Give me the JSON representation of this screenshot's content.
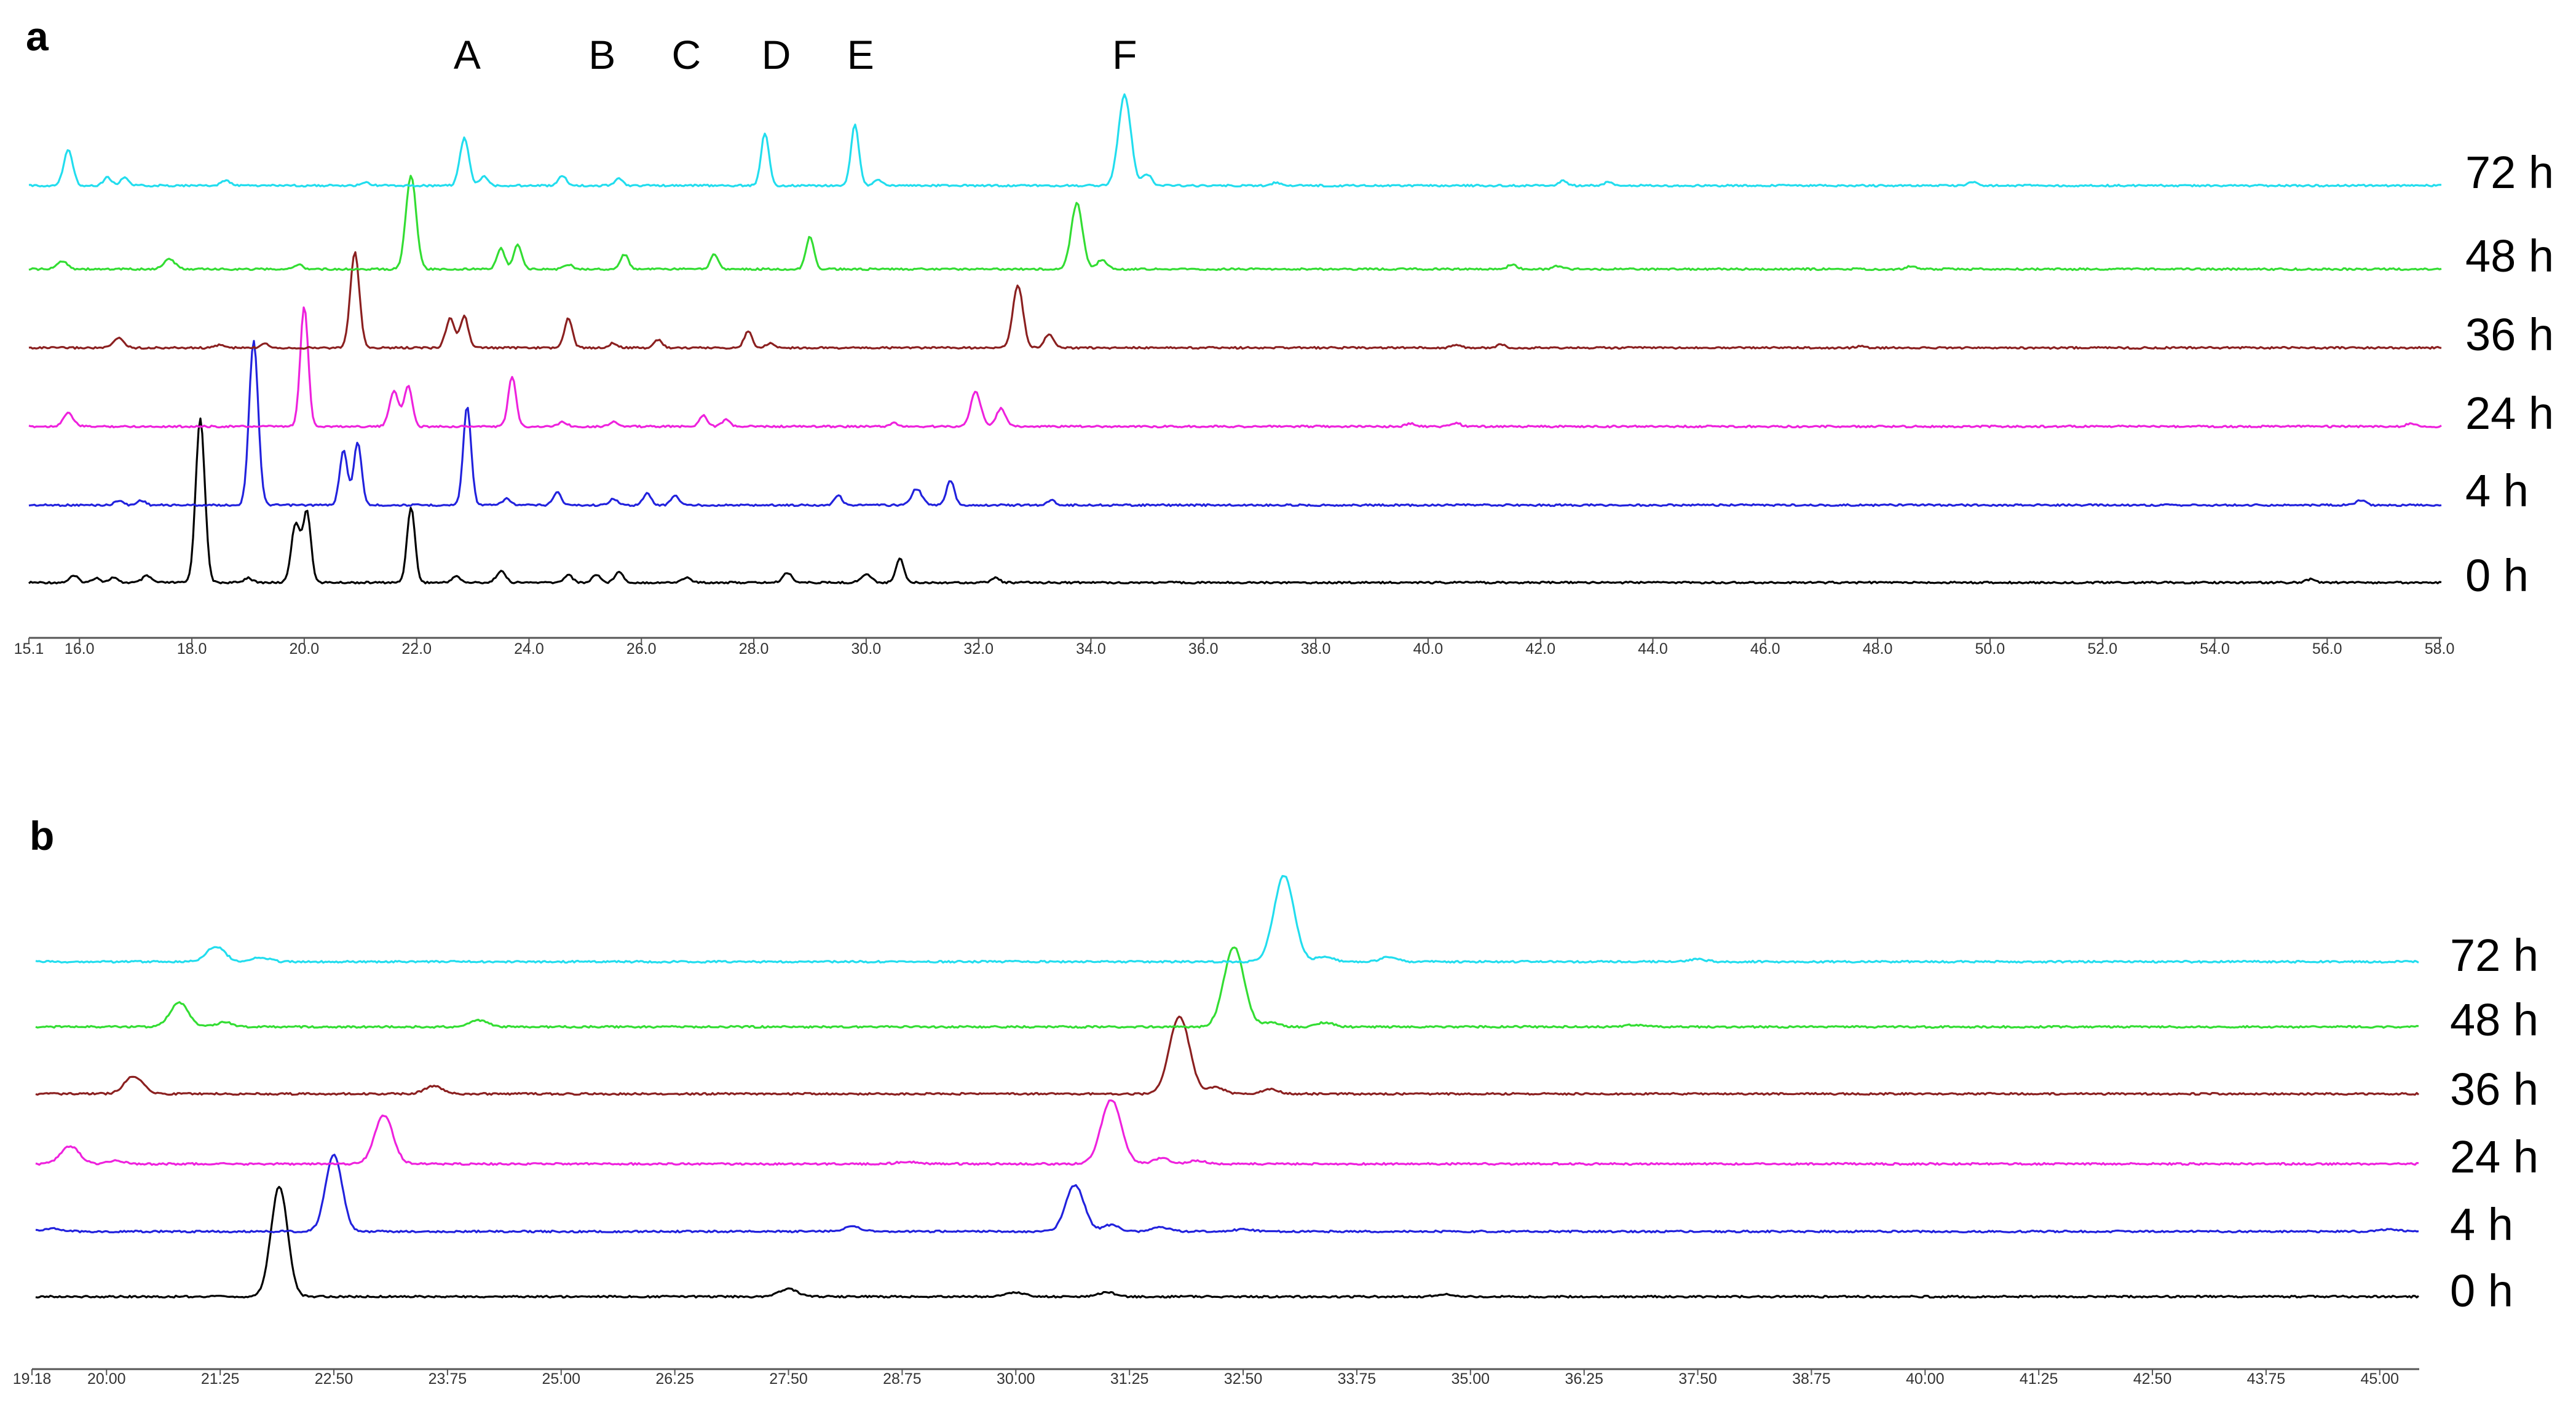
{
  "chart_data": [
    {
      "panel": "a",
      "type": "line",
      "x_ticks": [
        "15.1",
        "16.0",
        "18.0",
        "20.0",
        "22.0",
        "24.0",
        "26.0",
        "28.0",
        "30.0",
        "32.0",
        "34.0",
        "36.0",
        "38.0",
        "40.0",
        "42.0",
        "44.0",
        "46.0",
        "48.0",
        "50.0",
        "52.0",
        "54.0",
        "56.0",
        "58.0"
      ],
      "xlim": [
        15.1,
        58.5
      ],
      "peak_labels": [
        {
          "text": "A",
          "x": 22.9
        },
        {
          "text": "B",
          "x": 25.3
        },
        {
          "text": "C",
          "x": 26.8
        },
        {
          "text": "D",
          "x": 28.4
        },
        {
          "text": "E",
          "x": 29.9
        },
        {
          "text": "F",
          "x": 34.6
        }
      ],
      "series": [
        {
          "name": "0 h",
          "color": "#000000",
          "peaks": [
            [
              15.9,
              0.04,
              0.08
            ],
            [
              16.3,
              0.03,
              0.07
            ],
            [
              16.6,
              0.03,
              0.07
            ],
            [
              17.2,
              0.04,
              0.08
            ],
            [
              18.15,
              1.0,
              0.08
            ],
            [
              19.0,
              0.03,
              0.07
            ],
            [
              19.85,
              0.36,
              0.08
            ],
            [
              20.05,
              0.42,
              0.07
            ],
            [
              21.9,
              0.46,
              0.07
            ],
            [
              22.7,
              0.04,
              0.07
            ],
            [
              23.5,
              0.07,
              0.08
            ],
            [
              24.7,
              0.05,
              0.07
            ],
            [
              25.2,
              0.05,
              0.07
            ],
            [
              25.6,
              0.07,
              0.07
            ],
            [
              26.8,
              0.03,
              0.08
            ],
            [
              28.6,
              0.06,
              0.08
            ],
            [
              30.0,
              0.05,
              0.09
            ],
            [
              30.6,
              0.15,
              0.07
            ],
            [
              32.3,
              0.03,
              0.07
            ],
            [
              55.7,
              0.02,
              0.08
            ]
          ]
        },
        {
          "name": "4 h",
          "color": "#2222dd",
          "peaks": [
            [
              16.7,
              0.03,
              0.07
            ],
            [
              17.1,
              0.03,
              0.07
            ],
            [
              19.1,
              1.0,
              0.08
            ],
            [
              20.7,
              0.33,
              0.07
            ],
            [
              20.95,
              0.38,
              0.07
            ],
            [
              22.9,
              0.6,
              0.07
            ],
            [
              23.6,
              0.04,
              0.07
            ],
            [
              24.5,
              0.08,
              0.07
            ],
            [
              25.5,
              0.04,
              0.07
            ],
            [
              26.1,
              0.07,
              0.07
            ],
            [
              26.6,
              0.06,
              0.07
            ],
            [
              29.5,
              0.06,
              0.07
            ],
            [
              30.9,
              0.1,
              0.09
            ],
            [
              31.5,
              0.15,
              0.07
            ],
            [
              33.3,
              0.03,
              0.07
            ],
            [
              56.6,
              0.03,
              0.08
            ]
          ]
        },
        {
          "name": "24 h",
          "color": "#ee22dd",
          "peaks": [
            [
              15.8,
              0.08,
              0.09
            ],
            [
              20.0,
              0.73,
              0.07
            ],
            [
              21.6,
              0.22,
              0.08
            ],
            [
              21.85,
              0.25,
              0.07
            ],
            [
              23.7,
              0.3,
              0.07
            ],
            [
              24.6,
              0.03,
              0.07
            ],
            [
              25.5,
              0.03,
              0.07
            ],
            [
              27.1,
              0.07,
              0.07
            ],
            [
              27.5,
              0.04,
              0.07
            ],
            [
              30.5,
              0.02,
              0.07
            ],
            [
              31.95,
              0.21,
              0.09
            ],
            [
              32.4,
              0.11,
              0.08
            ],
            [
              39.7,
              0.02,
              0.08
            ],
            [
              40.5,
              0.02,
              0.08
            ],
            [
              57.5,
              0.02,
              0.08
            ]
          ]
        },
        {
          "name": "36 h",
          "color": "#8b2020",
          "peaks": [
            [
              16.7,
              0.06,
              0.09
            ],
            [
              18.5,
              0.02,
              0.07
            ],
            [
              19.3,
              0.03,
              0.07
            ],
            [
              20.9,
              0.58,
              0.08
            ],
            [
              22.6,
              0.18,
              0.08
            ],
            [
              22.85,
              0.19,
              0.07
            ],
            [
              24.7,
              0.18,
              0.07
            ],
            [
              25.5,
              0.03,
              0.07
            ],
            [
              26.3,
              0.05,
              0.07
            ],
            [
              27.9,
              0.1,
              0.07
            ],
            [
              28.3,
              0.03,
              0.07
            ],
            [
              32.7,
              0.38,
              0.09
            ],
            [
              33.25,
              0.08,
              0.08
            ],
            [
              40.5,
              0.02,
              0.08
            ],
            [
              41.3,
              0.02,
              0.08
            ],
            [
              47.7,
              0.01,
              0.08
            ]
          ]
        },
        {
          "name": "48 h",
          "color": "#33dd33",
          "peaks": [
            [
              15.7,
              0.05,
              0.09
            ],
            [
              17.6,
              0.06,
              0.1
            ],
            [
              19.9,
              0.03,
              0.07
            ],
            [
              21.9,
              0.57,
              0.09
            ],
            [
              23.5,
              0.13,
              0.07
            ],
            [
              23.8,
              0.15,
              0.07
            ],
            [
              24.7,
              0.03,
              0.07
            ],
            [
              25.7,
              0.09,
              0.07
            ],
            [
              27.3,
              0.09,
              0.07
            ],
            [
              29.0,
              0.2,
              0.07
            ],
            [
              33.75,
              0.4,
              0.1
            ],
            [
              34.2,
              0.06,
              0.08
            ],
            [
              41.5,
              0.03,
              0.08
            ],
            [
              42.3,
              0.02,
              0.08
            ],
            [
              48.6,
              0.02,
              0.08
            ]
          ]
        },
        {
          "name": "72 h",
          "color": "#22ddee",
          "peaks": [
            [
              15.8,
              0.22,
              0.08
            ],
            [
              16.5,
              0.05,
              0.07
            ],
            [
              16.8,
              0.05,
              0.07
            ],
            [
              18.6,
              0.03,
              0.08
            ],
            [
              21.1,
              0.02,
              0.07
            ],
            [
              22.85,
              0.29,
              0.08
            ],
            [
              23.2,
              0.06,
              0.07
            ],
            [
              24.6,
              0.06,
              0.07
            ],
            [
              25.6,
              0.04,
              0.07
            ],
            [
              28.2,
              0.32,
              0.07
            ],
            [
              29.8,
              0.37,
              0.07
            ],
            [
              30.2,
              0.04,
              0.07
            ],
            [
              34.6,
              0.55,
              0.11
            ],
            [
              35.0,
              0.07,
              0.08
            ],
            [
              37.3,
              0.02,
              0.07
            ],
            [
              42.4,
              0.03,
              0.07
            ],
            [
              43.2,
              0.02,
              0.07
            ],
            [
              49.7,
              0.02,
              0.08
            ]
          ]
        }
      ]
    },
    {
      "panel": "b",
      "type": "line",
      "x_ticks": [
        "19.18",
        "20.00",
        "21.25",
        "22.50",
        "23.75",
        "25.00",
        "26.25",
        "27.50",
        "28.75",
        "30.00",
        "31.25",
        "32.50",
        "33.75",
        "35.00",
        "36.25",
        "37.50",
        "38.75",
        "40.00",
        "41.25",
        "42.50",
        "43.75",
        "45.00"
      ],
      "xlim": [
        19.18,
        45.4
      ],
      "series": [
        {
          "name": "0 h",
          "color": "#000000",
          "peaks": [
            [
              21.9,
              1.0,
              0.09
            ],
            [
              27.5,
              0.07,
              0.1
            ],
            [
              30.0,
              0.04,
              0.1
            ],
            [
              31.0,
              0.04,
              0.09
            ],
            [
              34.7,
              0.02,
              0.1
            ]
          ]
        },
        {
          "name": "4 h",
          "color": "#2222dd",
          "peaks": [
            [
              19.4,
              0.03,
              0.1
            ],
            [
              22.5,
              0.7,
              0.09
            ],
            [
              28.2,
              0.05,
              0.09
            ],
            [
              30.65,
              0.42,
              0.1
            ],
            [
              31.05,
              0.06,
              0.09
            ],
            [
              31.6,
              0.04,
              0.09
            ],
            [
              32.5,
              0.02,
              0.1
            ],
            [
              45.1,
              0.02,
              0.1
            ]
          ]
        },
        {
          "name": "24 h",
          "color": "#ee22dd",
          "peaks": [
            [
              19.6,
              0.16,
              0.1
            ],
            [
              20.1,
              0.03,
              0.09
            ],
            [
              23.05,
              0.44,
              0.1
            ],
            [
              28.8,
              0.02,
              0.1
            ],
            [
              31.05,
              0.58,
              0.11
            ],
            [
              31.6,
              0.05,
              0.09
            ],
            [
              32.0,
              0.03,
              0.09
            ]
          ]
        },
        {
          "name": "36 h",
          "color": "#8b2020",
          "peaks": [
            [
              20.3,
              0.16,
              0.1
            ],
            [
              23.6,
              0.07,
              0.1
            ],
            [
              31.8,
              0.7,
              0.11
            ],
            [
              32.2,
              0.06,
              0.09
            ],
            [
              32.8,
              0.04,
              0.09
            ]
          ]
        },
        {
          "name": "48 h",
          "color": "#33dd33",
          "peaks": [
            [
              20.8,
              0.22,
              0.1
            ],
            [
              21.3,
              0.04,
              0.09
            ],
            [
              24.1,
              0.06,
              0.1
            ],
            [
              32.4,
              0.72,
              0.11
            ],
            [
              32.8,
              0.04,
              0.09
            ],
            [
              33.4,
              0.04,
              0.09
            ],
            [
              36.8,
              0.02,
              0.1
            ]
          ]
        },
        {
          "name": "72 h",
          "color": "#22ddee",
          "peaks": [
            [
              21.2,
              0.14,
              0.1
            ],
            [
              21.7,
              0.04,
              0.09
            ],
            [
              32.95,
              0.78,
              0.11
            ],
            [
              33.4,
              0.05,
              0.09
            ],
            [
              34.1,
              0.04,
              0.09
            ],
            [
              37.5,
              0.02,
              0.1
            ]
          ]
        }
      ]
    }
  ]
}
